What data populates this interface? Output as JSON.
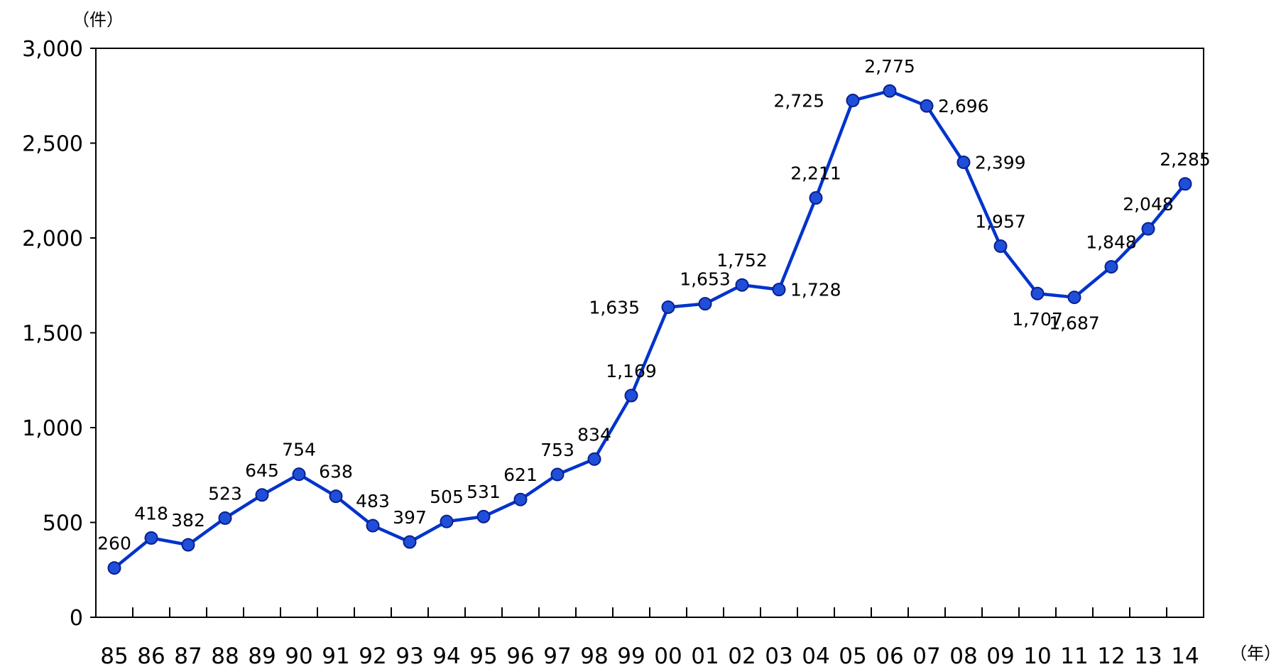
{
  "chart_data": {
    "type": "line",
    "y_unit_label": "（件）",
    "x_unit_label": "（年）",
    "ylim": [
      0,
      3000
    ],
    "yticks": [
      "0",
      "500",
      "1,000",
      "1,500",
      "2,000",
      "2,500",
      "3,000"
    ],
    "categories": [
      "85",
      "86",
      "87",
      "88",
      "89",
      "90",
      "91",
      "92",
      "93",
      "94",
      "95",
      "96",
      "97",
      "98",
      "99",
      "00",
      "01",
      "02",
      "03",
      "04",
      "05",
      "06",
      "07",
      "08",
      "09",
      "10",
      "11",
      "12",
      "13",
      "14"
    ],
    "values": [
      260,
      418,
      382,
      523,
      645,
      754,
      638,
      483,
      397,
      505,
      531,
      621,
      753,
      834,
      1169,
      1635,
      1653,
      1752,
      1728,
      2211,
      2725,
      2775,
      2696,
      2399,
      1957,
      1707,
      1687,
      1848,
      2048,
      2285
    ],
    "data_labels": [
      "260",
      "418",
      "382",
      "523",
      "645",
      "754",
      "638",
      "483",
      "397",
      "505",
      "531",
      "621",
      "753",
      "834",
      "1,169",
      "1,635",
      "1,653",
      "1,752",
      "1,728",
      "2,211",
      "2,725",
      "2,775",
      "2,696",
      "2,399",
      "1,957",
      "1,707",
      "1,687",
      "1,848",
      "2,048",
      "2,285"
    ],
    "line_color": "#0033CC",
    "marker_color": "#1F4FD8",
    "grid": false
  }
}
